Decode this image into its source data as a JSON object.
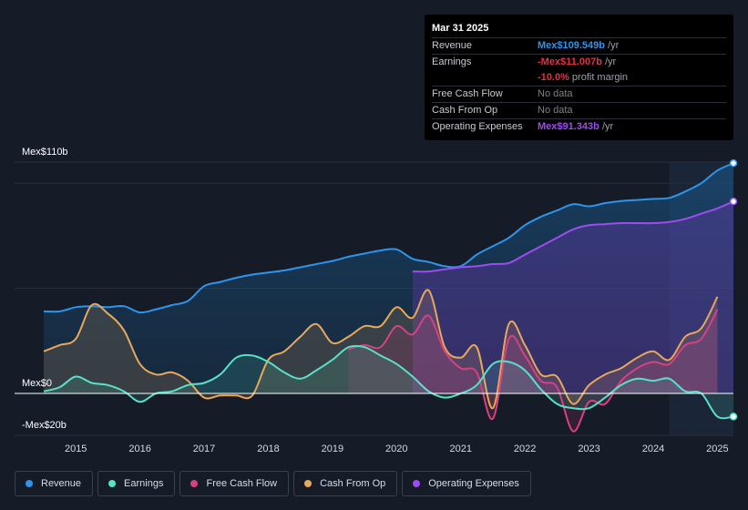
{
  "chart_data": {
    "type": "area",
    "title": "",
    "xlabel": "",
    "ylabel": "",
    "y_axis_labels": [
      "Mex$110b",
      "Mex$0",
      "-Mex$20b"
    ],
    "ylim": [
      -20,
      110
    ],
    "xlim": [
      2014.5,
      2025.25
    ],
    "x_ticks": [
      2015,
      2016,
      2017,
      2018,
      2019,
      2020,
      2021,
      2022,
      2023,
      2024,
      2025
    ],
    "x_tick_labels": [
      "2015",
      "2016",
      "2017",
      "2018",
      "2019",
      "2020",
      "2021",
      "2022",
      "2023",
      "2024",
      "2025"
    ],
    "highlight_region": [
      2024.25,
      2025.25
    ],
    "series": [
      {
        "name": "Revenue",
        "color": "#2d95ec",
        "x": [
          2014.5,
          2014.75,
          2015.0,
          2015.25,
          2015.5,
          2015.75,
          2016.0,
          2016.25,
          2016.5,
          2016.75,
          2017.0,
          2017.25,
          2017.5,
          2017.75,
          2018.0,
          2018.25,
          2018.5,
          2018.75,
          2019.0,
          2019.25,
          2019.5,
          2019.75,
          2020.0,
          2020.25,
          2020.5,
          2020.75,
          2021.0,
          2021.25,
          2021.5,
          2021.75,
          2022.0,
          2022.25,
          2022.5,
          2022.75,
          2023.0,
          2023.25,
          2023.5,
          2023.75,
          2024.0,
          2024.25,
          2024.5,
          2024.75,
          2025.0,
          2025.25
        ],
        "values": [
          39,
          39,
          41,
          41.5,
          41,
          41.5,
          38.5,
          40,
          42,
          44,
          51,
          53,
          55,
          56.5,
          57.5,
          58.5,
          60,
          61.5,
          63,
          65,
          66.5,
          68,
          68.5,
          64,
          62.5,
          60.5,
          60.5,
          66,
          70,
          74,
          80,
          84,
          87,
          90,
          89,
          90.5,
          91.5,
          92,
          92.5,
          93,
          96,
          100,
          106,
          109.5
        ]
      },
      {
        "name": "Earnings",
        "color": "#58e1c8",
        "x": [
          2014.5,
          2014.75,
          2015.0,
          2015.25,
          2015.5,
          2015.75,
          2016.0,
          2016.25,
          2016.5,
          2016.75,
          2017.0,
          2017.25,
          2017.5,
          2017.75,
          2018.0,
          2018.25,
          2018.5,
          2018.75,
          2019.0,
          2019.25,
          2019.5,
          2019.75,
          2020.0,
          2020.25,
          2020.5,
          2020.75,
          2021.0,
          2021.25,
          2021.5,
          2021.75,
          2022.0,
          2022.25,
          2022.5,
          2022.75,
          2023.0,
          2023.25,
          2023.5,
          2023.75,
          2024.0,
          2024.25,
          2024.5,
          2024.75,
          2025.0,
          2025.25
        ],
        "values": [
          1,
          3,
          8,
          5,
          4,
          1,
          -4,
          0,
          1,
          4,
          5,
          9,
          17,
          18,
          15,
          10,
          7,
          11,
          16,
          22,
          22,
          18,
          14,
          8,
          1,
          -2,
          0,
          4,
          14,
          15,
          11,
          2,
          -5,
          -7,
          -7,
          -2,
          4,
          7,
          6,
          7,
          1,
          0,
          -11,
          -11
        ]
      },
      {
        "name": "Free Cash Flow",
        "color": "#d64182",
        "x": [
          2019.25,
          2019.5,
          2019.75,
          2020.0,
          2020.25,
          2020.5,
          2020.75,
          2021.0,
          2021.25,
          2021.5,
          2021.75,
          2022.0,
          2022.25,
          2022.5,
          2022.75,
          2023.0,
          2023.25,
          2023.5,
          2023.75,
          2024.0,
          2024.25,
          2024.5,
          2024.75,
          2025.0
        ],
        "values": [
          21,
          23,
          22,
          32,
          28,
          37,
          20,
          12,
          10,
          -12,
          26,
          18,
          6,
          3,
          -18,
          -4,
          -5,
          6,
          12,
          15,
          14,
          23,
          26,
          40
        ]
      },
      {
        "name": "Cash From Op",
        "color": "#e8a85c",
        "x": [
          2014.5,
          2014.75,
          2015.0,
          2015.25,
          2015.5,
          2015.75,
          2016.0,
          2016.25,
          2016.5,
          2016.75,
          2017.0,
          2017.25,
          2017.5,
          2017.75,
          2018.0,
          2018.25,
          2018.5,
          2018.75,
          2019.0,
          2019.25,
          2019.5,
          2019.75,
          2020.0,
          2020.25,
          2020.5,
          2020.75,
          2021.0,
          2021.25,
          2021.5,
          2021.75,
          2022.0,
          2022.25,
          2022.5,
          2022.75,
          2023.0,
          2023.25,
          2023.5,
          2023.75,
          2024.0,
          2024.25,
          2024.5,
          2024.75,
          2025.0
        ],
        "values": [
          20,
          23,
          26,
          42,
          38,
          30,
          14,
          9,
          10,
          6,
          -2,
          -1,
          -1,
          -1,
          16,
          20,
          27,
          33,
          24,
          27,
          32,
          32,
          41,
          36,
          49,
          22,
          17,
          22,
          -7,
          33,
          23,
          9,
          8,
          -5,
          4,
          9,
          12,
          17,
          20,
          16,
          27,
          31,
          46
        ]
      },
      {
        "name": "Operating Expenses",
        "color": "#9e4bf0",
        "x": [
          2020.25,
          2020.5,
          2020.75,
          2021.0,
          2021.25,
          2021.5,
          2021.75,
          2022.0,
          2022.25,
          2022.5,
          2022.75,
          2023.0,
          2023.25,
          2023.5,
          2023.75,
          2024.0,
          2024.25,
          2024.5,
          2024.75,
          2025.0,
          2025.25
        ],
        "values": [
          58,
          58,
          59,
          60,
          60.5,
          61.5,
          62,
          66,
          70,
          74,
          78,
          80,
          80.5,
          81,
          81,
          81,
          81.5,
          83,
          85.5,
          88,
          91.3
        ]
      }
    ],
    "tooltip": {
      "date": "Mar 31 2025",
      "rows": [
        {
          "label": "Revenue",
          "value": "Mex$109.549b",
          "unit": " /yr",
          "color": "#2d95ec"
        },
        {
          "label": "Earnings",
          "value": "-Mex$11.007b",
          "unit": " /yr",
          "color": "#e5323c"
        },
        {
          "label": "",
          "value": "-10.0%",
          "unit": " profit margin",
          "color": "#e5323c"
        },
        {
          "label": "Free Cash Flow",
          "value": "No data",
          "unit": "",
          "color": ""
        },
        {
          "label": "Cash From Op",
          "value": "No data",
          "unit": "",
          "color": ""
        },
        {
          "label": "Operating Expenses",
          "value": "Mex$91.343b",
          "unit": " /yr",
          "color": "#9e4bf0"
        }
      ]
    }
  },
  "legend": [
    {
      "label": "Revenue",
      "color": "#2d95ec"
    },
    {
      "label": "Earnings",
      "color": "#58e1c8"
    },
    {
      "label": "Free Cash Flow",
      "color": "#d64182"
    },
    {
      "label": "Cash From Op",
      "color": "#e8a85c"
    },
    {
      "label": "Operating Expenses",
      "color": "#9e4bf0"
    }
  ]
}
